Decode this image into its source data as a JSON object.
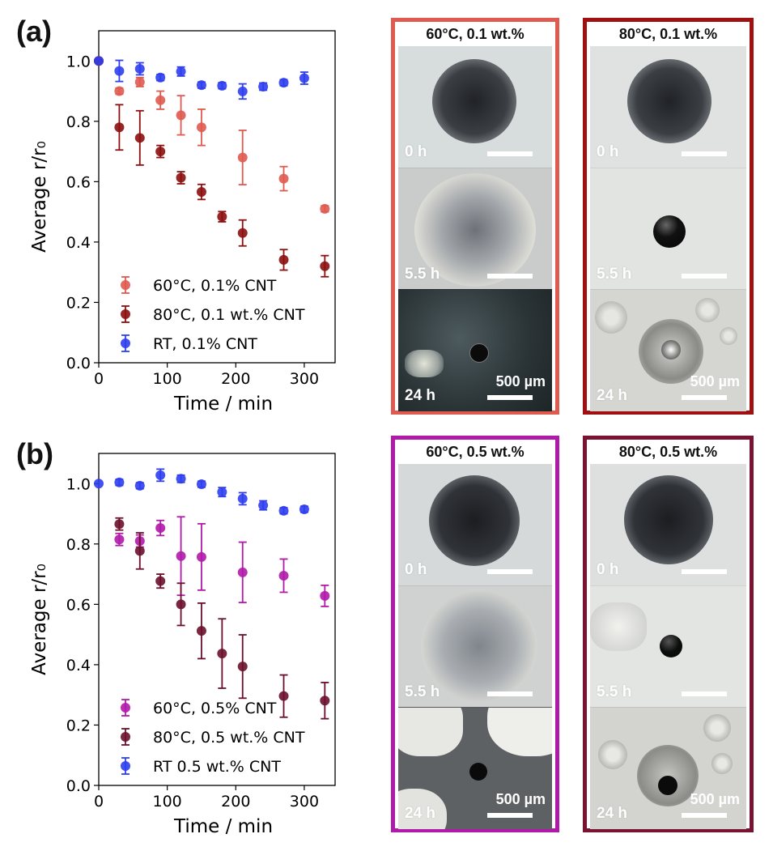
{
  "panels": [
    {
      "letter": "(a)",
      "chart_data": {
        "type": "scatter",
        "xlabel": "Time / min",
        "ylabel": "Average r/r₀",
        "xlim": [
          0,
          345
        ],
        "ylim": [
          0,
          1.1
        ],
        "xticks": [
          0,
          100,
          200,
          300
        ],
        "yticks": [
          0.0,
          0.2,
          0.4,
          0.6,
          0.8,
          1.0
        ],
        "xtick_labels": [
          "0",
          "100",
          "200",
          "300"
        ],
        "ytick_labels": [
          "0.0",
          "0.2",
          "0.4",
          "0.6",
          "0.8",
          "1.0"
        ],
        "legend_position": "bottom-left",
        "series": [
          {
            "name": "60°C, 0.1% CNT",
            "color": "#e05a4f",
            "x": [
              0,
              30,
              60,
              90,
              120,
              150,
              210,
              270,
              330
            ],
            "y": [
              1.0,
              0.9,
              0.93,
              0.87,
              0.82,
              0.78,
              0.68,
              0.61,
              0.51
            ],
            "err": [
              0,
              0.01,
              0.015,
              0.03,
              0.065,
              0.06,
              0.09,
              0.04,
              0.01
            ]
          },
          {
            "name": "80°C, 0.1 wt.% CNT",
            "color": "#8c1010",
            "x": [
              0,
              30,
              60,
              90,
              120,
              150,
              180,
              210,
              270,
              330
            ],
            "y": [
              1.0,
              0.78,
              0.745,
              0.7,
              0.613,
              0.566,
              0.484,
              0.43,
              0.341,
              0.32
            ],
            "err": [
              0,
              0.075,
              0.09,
              0.02,
              0.02,
              0.025,
              0.017,
              0.043,
              0.034,
              0.035
            ]
          },
          {
            "name": "RT, 0.1% CNT",
            "color": "#2f3ef0",
            "x": [
              0,
              30,
              60,
              90,
              120,
              150,
              180,
              210,
              240,
              270,
              300
            ],
            "y": [
              1.0,
              0.967,
              0.974,
              0.945,
              0.965,
              0.92,
              0.918,
              0.899,
              0.915,
              0.928,
              0.943
            ],
            "err": [
              0,
              0.035,
              0.02,
              0.01,
              0.015,
              0.01,
              0.01,
              0.025,
              0.012,
              0.01,
              0.02
            ]
          }
        ]
      },
      "photo_columns": [
        {
          "title": "60°C, 0.1 wt.%",
          "border_color": "#e05a4f",
          "frames": [
            {
              "time": "0 h",
              "scale": ""
            },
            {
              "time": "5.5 h",
              "scale": ""
            },
            {
              "time": "24 h",
              "scale": "500 µm"
            }
          ]
        },
        {
          "title": "80°C, 0.1 wt.%",
          "border_color": "#a01010",
          "frames": [
            {
              "time": "0 h",
              "scale": ""
            },
            {
              "time": "5.5 h",
              "scale": ""
            },
            {
              "time": "24 h",
              "scale": "500 µm"
            }
          ]
        }
      ]
    },
    {
      "letter": "(b)",
      "chart_data": {
        "type": "scatter",
        "xlabel": "Time / min",
        "ylabel": "Average r/r₀",
        "xlim": [
          0,
          345
        ],
        "ylim": [
          0,
          1.1
        ],
        "xticks": [
          0,
          100,
          200,
          300
        ],
        "yticks": [
          0.0,
          0.2,
          0.4,
          0.6,
          0.8,
          1.0
        ],
        "xtick_labels": [
          "0",
          "100",
          "200",
          "300"
        ],
        "ytick_labels": [
          "0.0",
          "0.2",
          "0.4",
          "0.6",
          "0.8",
          "1.0"
        ],
        "legend_position": "bottom-left",
        "series": [
          {
            "name": "60°C, 0.5% CNT",
            "color": "#b01aa8",
            "x": [
              30,
              60,
              90,
              120,
              150,
              210,
              270,
              330
            ],
            "y": [
              0.815,
              0.81,
              0.853,
              0.76,
              0.757,
              0.706,
              0.695,
              0.628
            ],
            "err": [
              0.02,
              0.02,
              0.025,
              0.13,
              0.11,
              0.1,
              0.055,
              0.035
            ]
          },
          {
            "name": "80°C, 0.5 wt.% CNT",
            "color": "#6b0f2c",
            "x": [
              30,
              60,
              90,
              120,
              150,
              180,
              210,
              270,
              330
            ],
            "y": [
              0.866,
              0.777,
              0.677,
              0.6,
              0.512,
              0.437,
              0.394,
              0.296,
              0.281
            ],
            "err": [
              0.02,
              0.06,
              0.023,
              0.07,
              0.092,
              0.115,
              0.105,
              0.07,
              0.06
            ]
          },
          {
            "name": "RT 0.5 wt.% CNT",
            "color": "#2f3ef0",
            "x": [
              0,
              30,
              60,
              90,
              120,
              150,
              180,
              210,
              240,
              270,
              300
            ],
            "y": [
              1.0,
              1.004,
              0.993,
              1.028,
              1.016,
              0.998,
              0.972,
              0.95,
              0.928,
              0.91,
              0.915
            ],
            "err": [
              0,
              0.01,
              0.01,
              0.02,
              0.012,
              0.01,
              0.015,
              0.02,
              0.015,
              0.01,
              0.01
            ]
          }
        ]
      },
      "photo_columns": [
        {
          "title": "60°C, 0.5 wt.%",
          "border_color": "#b01aa8",
          "frames": [
            {
              "time": "0 h",
              "scale": ""
            },
            {
              "time": "5.5 h",
              "scale": ""
            },
            {
              "time": "24 h",
              "scale": "500 µm"
            }
          ]
        },
        {
          "title": "80°C, 0.5 wt.%",
          "border_color": "#7a1232",
          "frames": [
            {
              "time": "0 h",
              "scale": ""
            },
            {
              "time": "5.5 h",
              "scale": ""
            },
            {
              "time": "24 h",
              "scale": "500 µm"
            }
          ]
        }
      ]
    }
  ]
}
